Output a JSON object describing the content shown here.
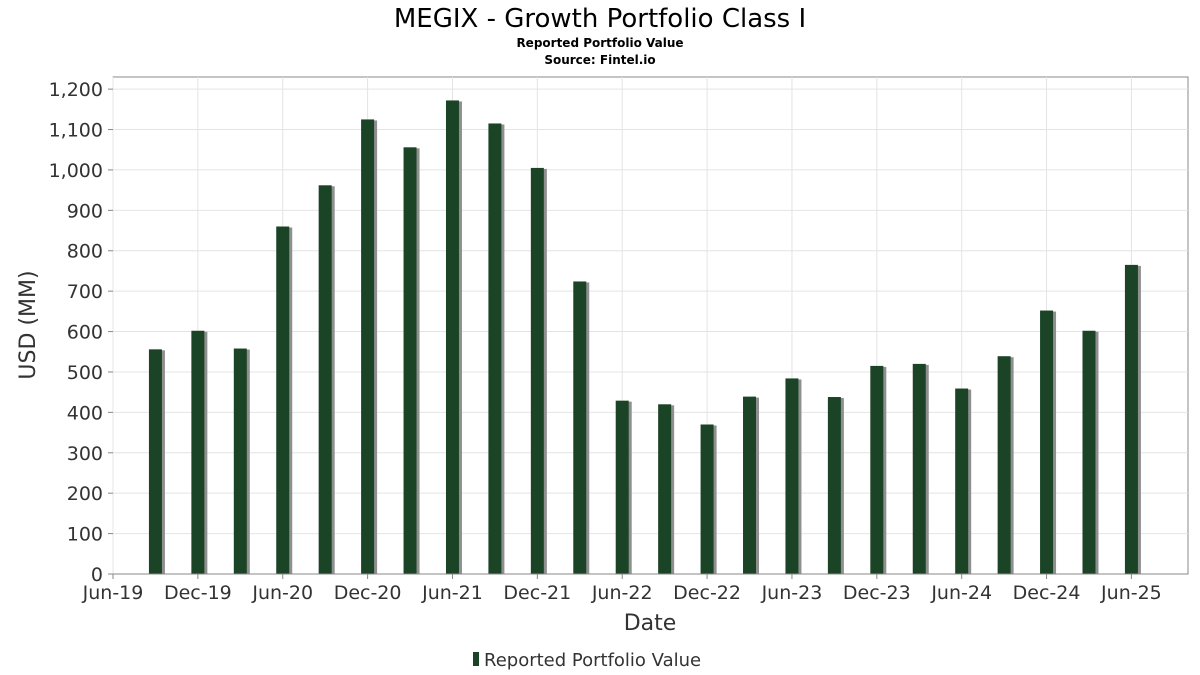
{
  "title": "MEGIX - Growth Portfolio Class I",
  "subtitle": "Reported Portfolio Value",
  "source": "Source: Fintel.io",
  "colors": {
    "bar": "#1b4426",
    "bar_shadow": "#8f8f8f",
    "grid": "#e4e4e4",
    "axis": "#888888"
  },
  "chart_data": {
    "type": "bar",
    "title": "MEGIX - Growth Portfolio Class I",
    "subtitle": "Reported Portfolio Value",
    "xlabel": "Date",
    "ylabel": "USD (MM)",
    "ylim": [
      0,
      1230
    ],
    "xlim": [
      "2019-06",
      "2025-10"
    ],
    "yticks": [
      0,
      100,
      200,
      300,
      400,
      500,
      600,
      700,
      800,
      900,
      1000,
      1100,
      1200
    ],
    "ytick_labels": [
      "0",
      "100",
      "200",
      "300",
      "400",
      "500",
      "600",
      "700",
      "800",
      "900",
      "1,000",
      "1,100",
      "1,200"
    ],
    "xticks": [
      {
        "date": "2019-06",
        "label": "Jun-19"
      },
      {
        "date": "2019-12",
        "label": "Dec-19"
      },
      {
        "date": "2020-06",
        "label": "Jun-20"
      },
      {
        "date": "2020-12",
        "label": "Dec-20"
      },
      {
        "date": "2021-06",
        "label": "Jun-21"
      },
      {
        "date": "2021-12",
        "label": "Dec-21"
      },
      {
        "date": "2022-06",
        "label": "Jun-22"
      },
      {
        "date": "2022-12",
        "label": "Dec-22"
      },
      {
        "date": "2023-06",
        "label": "Jun-23"
      },
      {
        "date": "2023-12",
        "label": "Dec-23"
      },
      {
        "date": "2024-06",
        "label": "Jun-24"
      },
      {
        "date": "2024-12",
        "label": "Dec-24"
      },
      {
        "date": "2025-06",
        "label": "Jun-25"
      }
    ],
    "grid": true,
    "legend_position": "bottom",
    "series": [
      {
        "name": "Reported Portfolio Value",
        "color": "#1b4426",
        "points": [
          {
            "date": "2019-09",
            "value": 556
          },
          {
            "date": "2019-12",
            "value": 602
          },
          {
            "date": "2020-03",
            "value": 558
          },
          {
            "date": "2020-06",
            "value": 860
          },
          {
            "date": "2020-09",
            "value": 962
          },
          {
            "date": "2020-12",
            "value": 1125
          },
          {
            "date": "2021-03",
            "value": 1056
          },
          {
            "date": "2021-06",
            "value": 1172
          },
          {
            "date": "2021-09",
            "value": 1115
          },
          {
            "date": "2021-12",
            "value": 1005
          },
          {
            "date": "2022-03",
            "value": 724
          },
          {
            "date": "2022-06",
            "value": 429
          },
          {
            "date": "2022-09",
            "value": 420
          },
          {
            "date": "2022-12",
            "value": 370
          },
          {
            "date": "2023-03",
            "value": 439
          },
          {
            "date": "2023-06",
            "value": 484
          },
          {
            "date": "2023-09",
            "value": 438
          },
          {
            "date": "2023-12",
            "value": 515
          },
          {
            "date": "2024-03",
            "value": 520
          },
          {
            "date": "2024-06",
            "value": 459
          },
          {
            "date": "2024-09",
            "value": 539
          },
          {
            "date": "2024-12",
            "value": 652
          },
          {
            "date": "2025-03",
            "value": 602
          },
          {
            "date": "2025-06",
            "value": 765
          }
        ]
      }
    ]
  }
}
